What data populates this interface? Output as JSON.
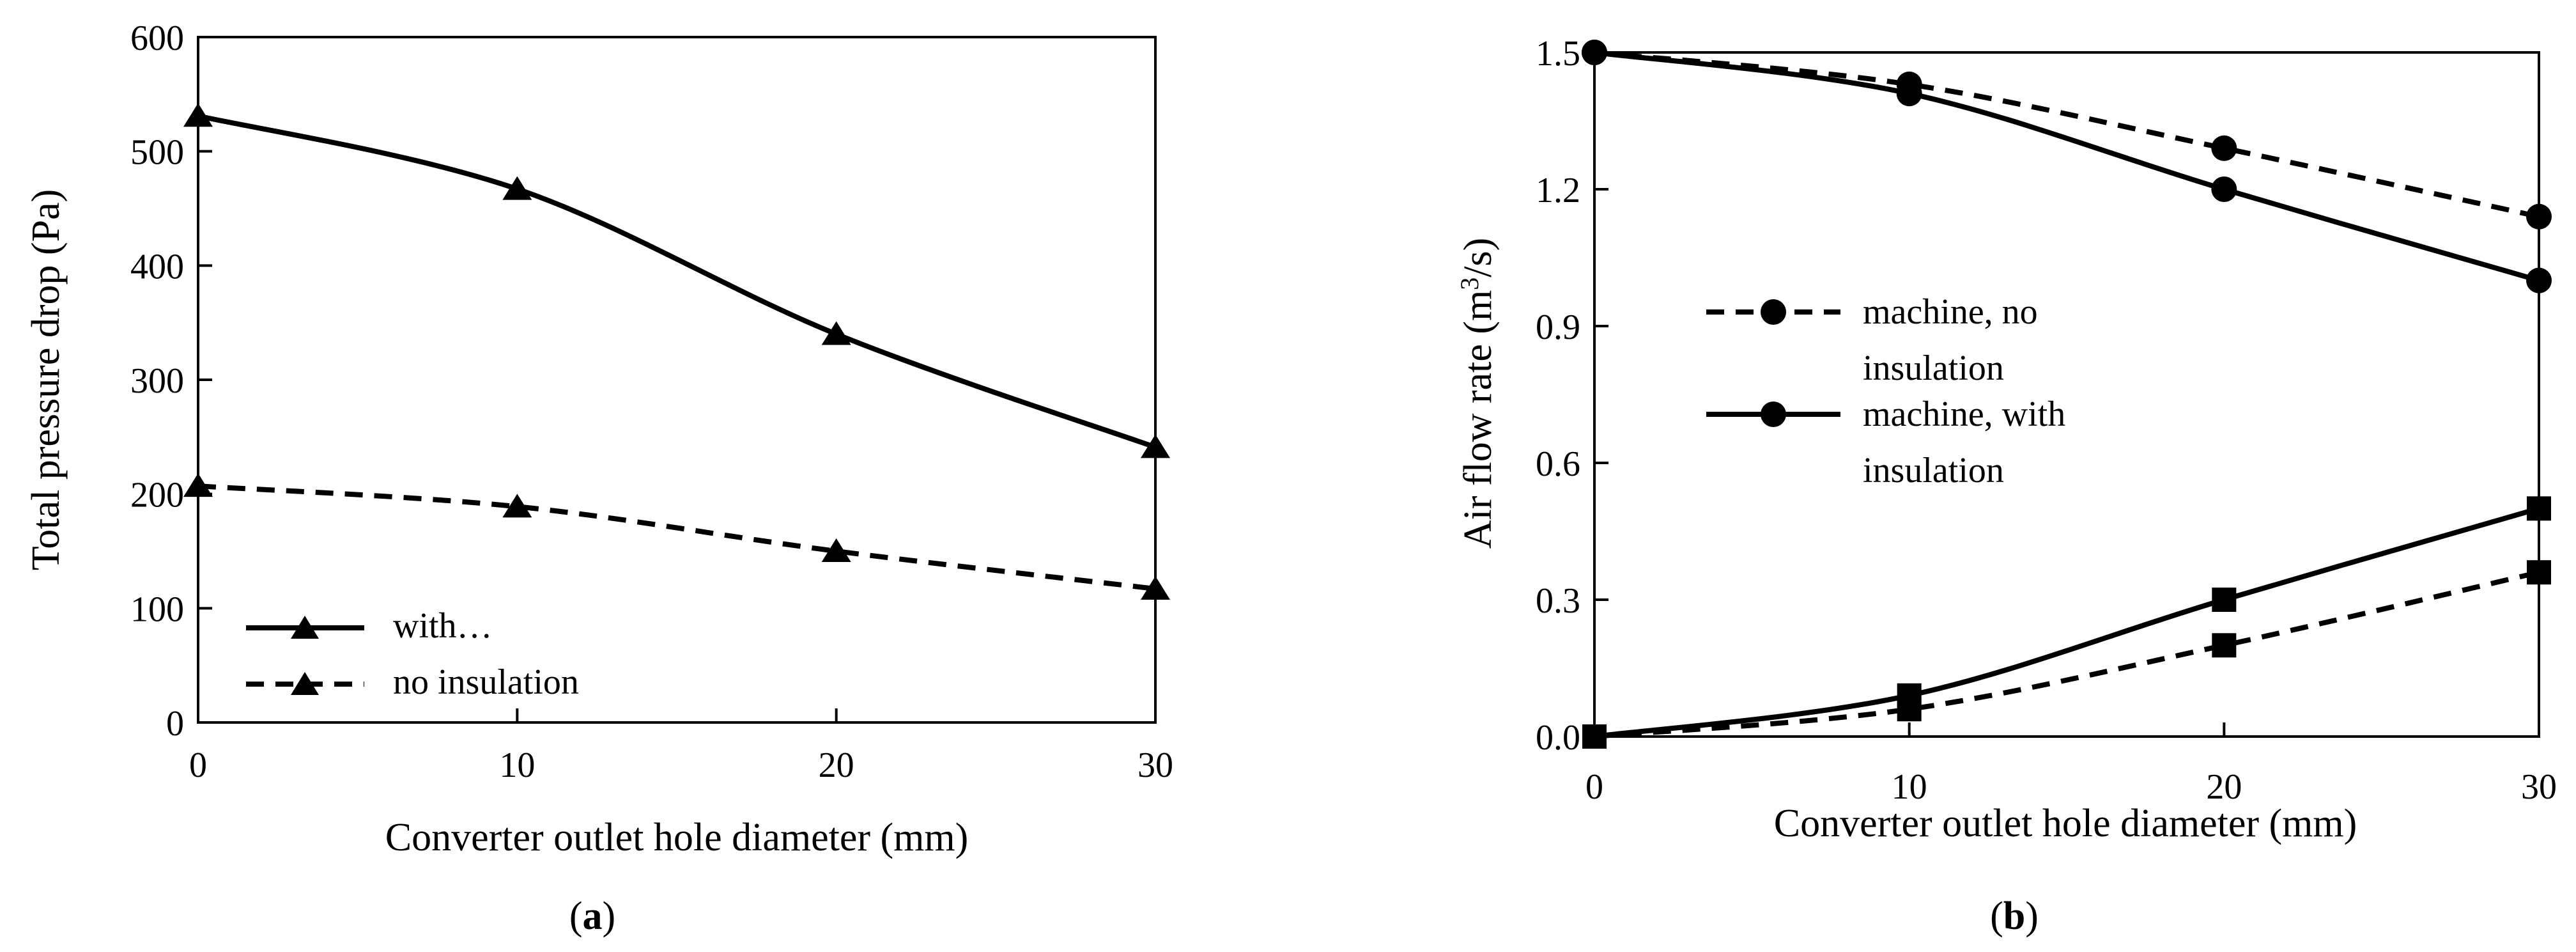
{
  "chart_data": [
    {
      "panel_label_prefix": "(",
      "panel_label": "a",
      "panel_label_suffix": ")",
      "type": "line",
      "xlabel": "Converter outlet hole diameter (mm)",
      "ylabel": "Total pressure drop (Pa)",
      "xlim": [
        0,
        30
      ],
      "ylim": [
        0,
        600
      ],
      "xticks": [
        0,
        10,
        20,
        30
      ],
      "yticks": [
        0,
        100,
        200,
        300,
        400,
        500,
        600
      ],
      "grid": false,
      "legend_position": "bottom-left",
      "series": [
        {
          "name": "with…",
          "style": "solid",
          "marker": "triangle",
          "x": [
            0,
            10,
            20,
            30
          ],
          "values": [
            531,
            467,
            340,
            241
          ]
        },
        {
          "name": "no insulation",
          "style": "dashed",
          "marker": "triangle",
          "x": [
            0,
            10,
            20,
            30
          ],
          "values": [
            207,
            189,
            150,
            117
          ]
        }
      ]
    },
    {
      "panel_label_prefix": "(",
      "panel_label": "b",
      "panel_label_suffix": ")",
      "type": "line",
      "xlabel": "Converter outlet hole diameter (mm)",
      "ylabel": "Air flow rate (m³/s)",
      "xlim": [
        0,
        30
      ],
      "ylim": [
        0,
        1.5
      ],
      "xticks": [
        "0",
        "10",
        "20",
        "30"
      ],
      "yticks": [
        "0.0",
        "0.3",
        "0.6",
        "0.9",
        "1.2",
        "1.5"
      ],
      "grid": false,
      "legend_position": "middle-left",
      "series": [
        {
          "name": "machine, no insulation",
          "style": "dashed",
          "marker": "circle",
          "x": [
            0,
            10,
            20,
            30
          ],
          "values": [
            1.5,
            1.43,
            1.29,
            1.14
          ]
        },
        {
          "name": "machine, with insulation",
          "style": "solid",
          "marker": "circle",
          "x": [
            0,
            10,
            20,
            30
          ],
          "values": [
            1.5,
            1.41,
            1.2,
            1.0
          ]
        },
        {
          "name": "",
          "style": "solid",
          "marker": "square",
          "x": [
            0,
            10,
            20,
            30
          ],
          "values": [
            0.0,
            0.09,
            0.3,
            0.5
          ]
        },
        {
          "name": "",
          "style": "dashed",
          "marker": "square",
          "x": [
            0,
            10,
            20,
            30
          ],
          "values": [
            0.0,
            0.06,
            0.2,
            0.36
          ]
        }
      ]
    }
  ]
}
